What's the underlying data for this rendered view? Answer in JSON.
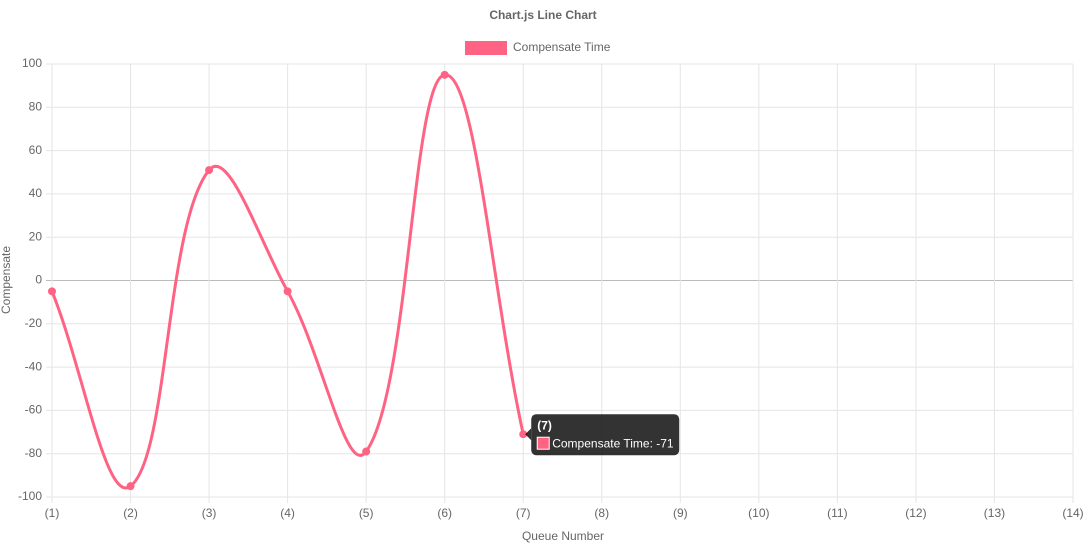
{
  "chart_data": {
    "type": "line",
    "title": "Chart.js Line Chart",
    "x_label": "Queue Number",
    "y_label": "Compensate",
    "categories": [
      "(1)",
      "(2)",
      "(3)",
      "(4)",
      "(5)",
      "(6)",
      "(7)",
      "(8)",
      "(9)",
      "(10)",
      "(11)",
      "(12)",
      "(13)",
      "(14)"
    ],
    "series": [
      {
        "name": "Compensate Time",
        "color": "#ff6384",
        "values": [
          -5,
          -95,
          51,
          -5,
          -79,
          95,
          -71,
          null,
          null,
          null,
          null,
          null,
          null,
          null
        ]
      }
    ],
    "ylim": [
      -100,
      100
    ],
    "yticks": [
      -100,
      -80,
      -60,
      -40,
      -20,
      0,
      20,
      40,
      60,
      80,
      100
    ],
    "grid": true,
    "legend": "top",
    "tooltip": {
      "title": "(7)",
      "label": "Compensate Time: -71"
    }
  }
}
